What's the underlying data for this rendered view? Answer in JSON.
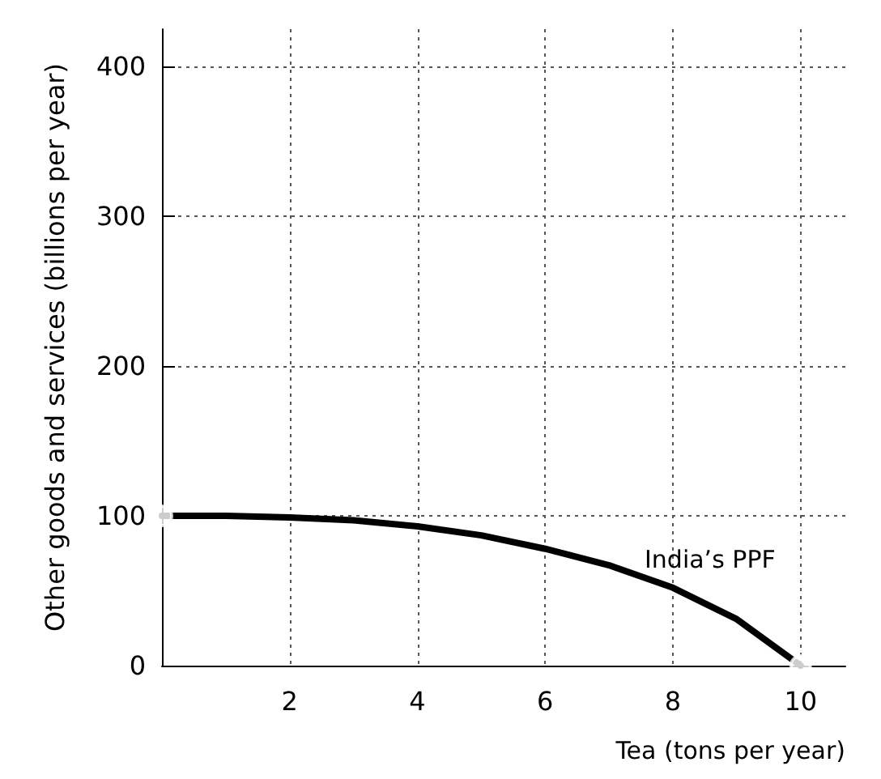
{
  "chart_data": {
    "type": "line",
    "xlabel": "Tea (tons per year)",
    "ylabel": "Other goods and services (billions per year)",
    "xlim": [
      0,
      10.7
    ],
    "xticks": [
      2,
      4,
      6,
      8,
      10
    ],
    "ylim": [
      0,
      425
    ],
    "yticks": [
      0,
      100,
      200,
      300,
      400
    ],
    "grid": true,
    "series": [
      {
        "color": "#000000",
        "marker": "none",
        "x": [
          0,
          1,
          2,
          3,
          4,
          5,
          6,
          7,
          8,
          9,
          10
        ],
        "values": [
          100,
          100,
          99,
          97,
          93,
          87,
          78,
          67,
          52,
          31,
          0
        ]
      },
      {
        "type": "scatter",
        "color": "#ffffff",
        "marker": "circle",
        "x": [
          0,
          10
        ],
        "values": [
          100,
          0
        ]
      }
    ],
    "annotations": [
      "India’s PPF"
    ]
  }
}
